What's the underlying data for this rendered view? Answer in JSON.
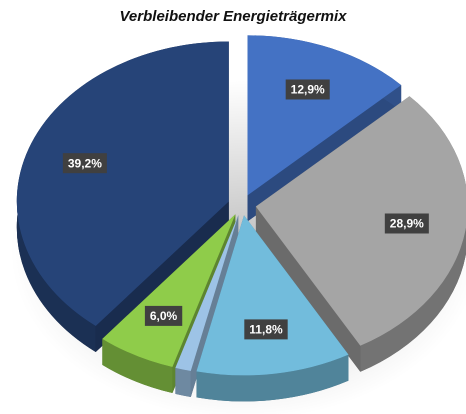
{
  "chart_data": {
    "type": "pie",
    "title": "Verbleibender Energieträgermix",
    "values": [
      12.9,
      28.9,
      11.8,
      1.2,
      6.0,
      39.2
    ],
    "value_labels": [
      "12,9%",
      "28,9%",
      "11,8%",
      null,
      "6,0%",
      "39,2%"
    ],
    "colors": [
      "#4472c4",
      "#a5a5a5",
      "#72bcdc",
      "#9dc3e6",
      "#8fcc4a",
      "#264478"
    ]
  }
}
